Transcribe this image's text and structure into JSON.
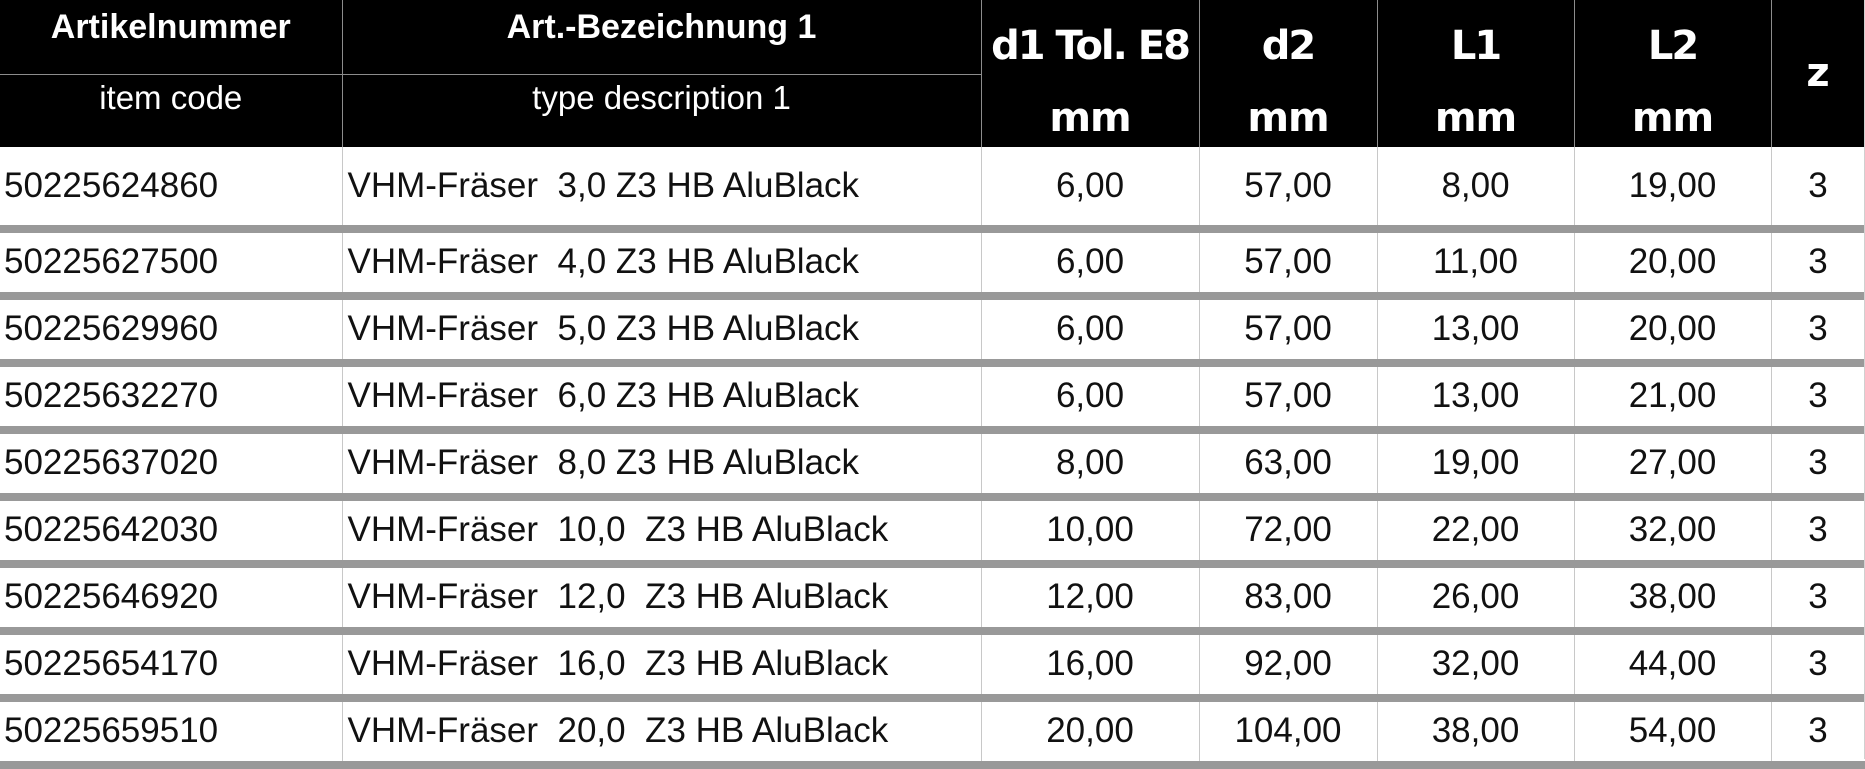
{
  "headers": {
    "item_code_de": "Artikelnummer",
    "item_code_en": "item code",
    "description_de": "Art.-Bezeichnung 1",
    "description_en": "type description 1",
    "d1": "d1 Tol. E8",
    "d2": "d2",
    "l1": "L1",
    "l2": "L2",
    "z": "z",
    "unit": "mm"
  },
  "rows": [
    {
      "code": "50225624860",
      "desc": "VHM-Fräser  3,0 Z3 HB AluBlack",
      "d1": "6,00",
      "d2": "57,00",
      "l1": "8,00",
      "l2": "19,00",
      "z": "3"
    },
    {
      "code": "50225627500",
      "desc": "VHM-Fräser  4,0 Z3 HB AluBlack",
      "d1": "6,00",
      "d2": "57,00",
      "l1": "11,00",
      "l2": "20,00",
      "z": "3"
    },
    {
      "code": "50225629960",
      "desc": "VHM-Fräser  5,0 Z3 HB AluBlack",
      "d1": "6,00",
      "d2": "57,00",
      "l1": "13,00",
      "l2": "20,00",
      "z": "3"
    },
    {
      "code": "50225632270",
      "desc": "VHM-Fräser  6,0 Z3 HB AluBlack",
      "d1": "6,00",
      "d2": "57,00",
      "l1": "13,00",
      "l2": "21,00",
      "z": "3"
    },
    {
      "code": "50225637020",
      "desc": "VHM-Fräser  8,0 Z3 HB AluBlack",
      "d1": "8,00",
      "d2": "63,00",
      "l1": "19,00",
      "l2": "27,00",
      "z": "3"
    },
    {
      "code": "50225642030",
      "desc": "VHM-Fräser  10,0  Z3 HB AluBlack",
      "d1": "10,00",
      "d2": "72,00",
      "l1": "22,00",
      "l2": "32,00",
      "z": "3"
    },
    {
      "code": "50225646920",
      "desc": "VHM-Fräser  12,0  Z3 HB AluBlack",
      "d1": "12,00",
      "d2": "83,00",
      "l1": "26,00",
      "l2": "38,00",
      "z": "3"
    },
    {
      "code": "50225654170",
      "desc": "VHM-Fräser  16,0  Z3 HB AluBlack",
      "d1": "16,00",
      "d2": "92,00",
      "l1": "32,00",
      "l2": "44,00",
      "z": "3"
    },
    {
      "code": "50225659510",
      "desc": "VHM-Fräser  20,0  Z3 HB AluBlack",
      "d1": "20,00",
      "d2": "104,00",
      "l1": "38,00",
      "l2": "54,00",
      "z": "3"
    }
  ],
  "colors": {
    "header_bg": "#000000",
    "header_text": "#ffffff",
    "row_separator": "#999999"
  }
}
